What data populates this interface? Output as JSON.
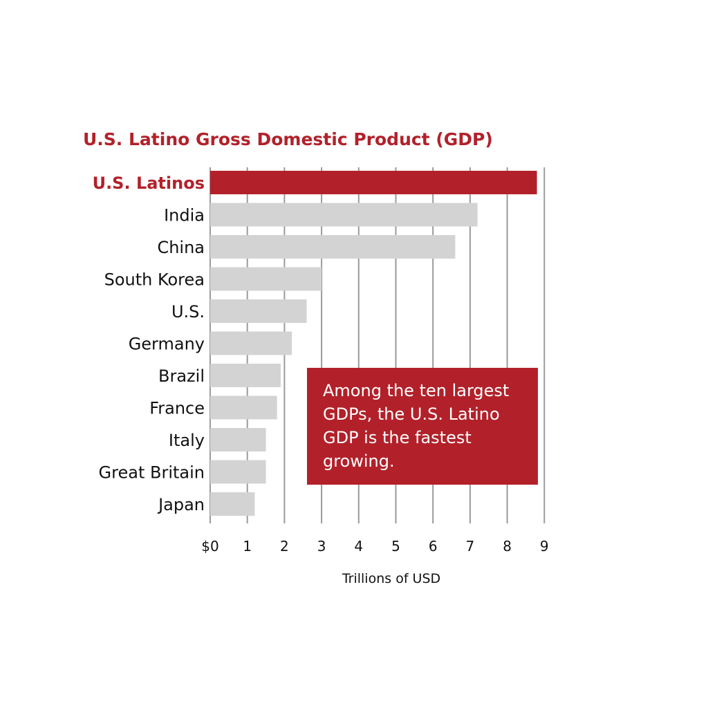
{
  "chart_data": {
    "type": "bar",
    "orientation": "horizontal",
    "title": "U.S. Latino Gross Domestic Product (GDP)",
    "xlabel": "Trillions of USD",
    "xlim": [
      0,
      9
    ],
    "x_ticks": [
      "$0",
      "1",
      "2",
      "3",
      "4",
      "5",
      "6",
      "7",
      "8",
      "9"
    ],
    "grid": true,
    "categories": [
      "U.S. Latinos",
      "India",
      "China",
      "South Korea",
      "U.S.",
      "Germany",
      "Brazil",
      "France",
      "Italy",
      "Great Britain",
      "Japan"
    ],
    "values": [
      8.8,
      7.2,
      6.6,
      3.0,
      2.6,
      2.2,
      1.9,
      1.8,
      1.5,
      1.5,
      1.2
    ],
    "highlight_index": 0,
    "colors": {
      "highlight": "#b2212a",
      "bar": "#d3d3d4",
      "grid": "#9a9a9a"
    },
    "annotation": "Among the ten largest GDPs, the U.S. Latino GDP is the fastest growing."
  }
}
